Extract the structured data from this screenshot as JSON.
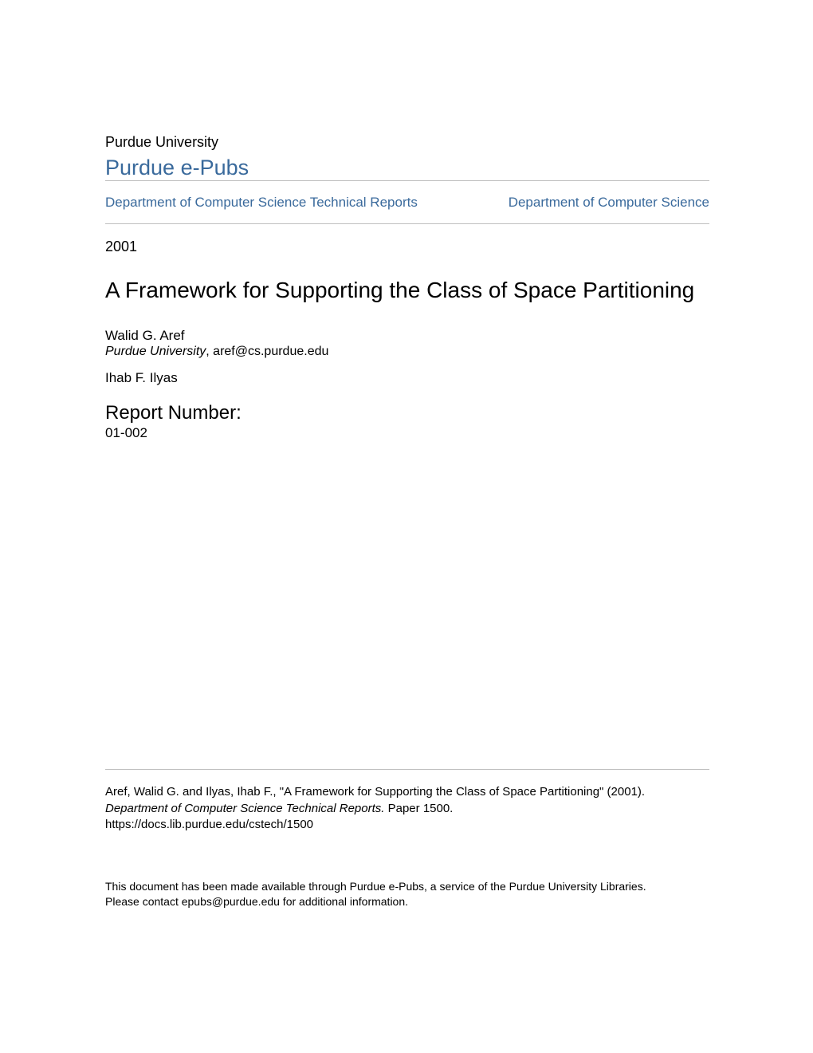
{
  "header": {
    "university": "Purdue University",
    "repository": "Purdue e-Pubs"
  },
  "breadcrumb": {
    "left": "Department of Computer Science Technical Reports",
    "right": "Department of Computer Science"
  },
  "meta": {
    "year": "2001"
  },
  "title": "A Framework for Supporting the Class of Space Partitioning",
  "authors": [
    {
      "name": "Walid G. Aref",
      "affiliation": "Purdue University",
      "email": "aref@cs.purdue.edu"
    },
    {
      "name": "Ihab F. Ilyas",
      "affiliation": "",
      "email": ""
    }
  ],
  "report": {
    "label": "Report Number:",
    "number": "01-002"
  },
  "citation": {
    "line1": "Aref, Walid G. and Ilyas, Ihab F., \"A Framework for Supporting the Class of Space Partitioning\" (2001).",
    "line2_italic": "Department of Computer Science Technical Reports.",
    "line2_rest": " Paper 1500.",
    "line3": "https://docs.lib.purdue.edu/cstech/1500"
  },
  "disclaimer": {
    "line1": "This document has been made available through Purdue e-Pubs, a service of the Purdue University Libraries.",
    "line2": "Please contact epubs@purdue.edu for additional information."
  },
  "colors": {
    "link": "#3a6a9c",
    "text": "#000000",
    "divider": "#bfbfbf",
    "background": "#ffffff"
  }
}
